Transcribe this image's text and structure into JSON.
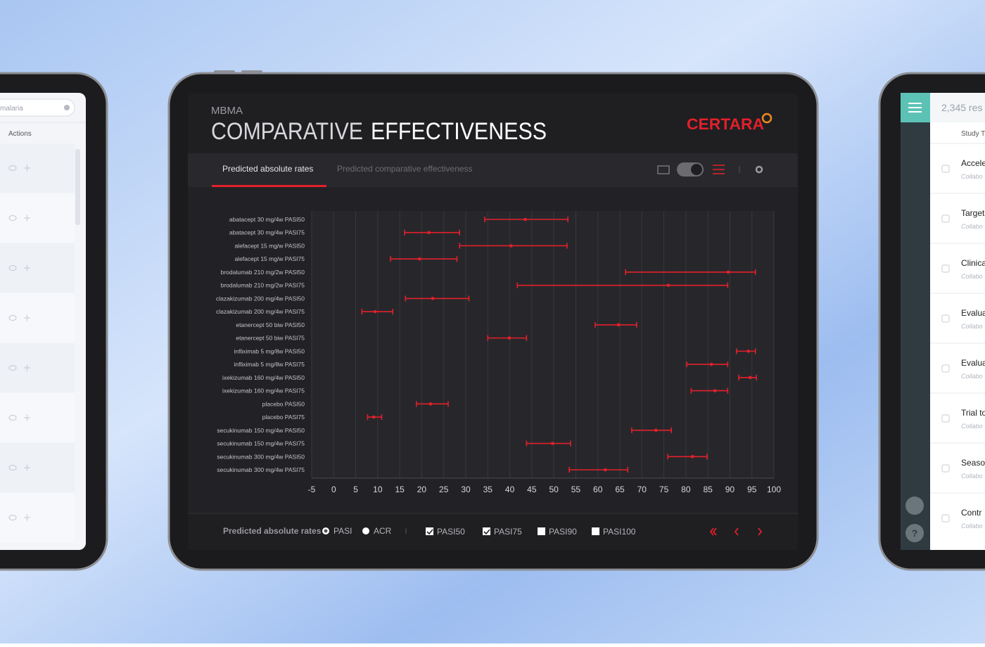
{
  "header": {
    "subtitle": "MBMA",
    "title_light": "COMPARATIVE",
    "title_bold": "EFFECTIVENESS",
    "logo": "CERTARA"
  },
  "tabs": [
    "Predicted absolute rates",
    "Predicted comparative effectiveness"
  ],
  "footer": {
    "label": "Predicted absolute rates",
    "radios": [
      "PASI",
      "ACR"
    ],
    "checkboxes": [
      "PASI50",
      "PASI75",
      "PASI90",
      "PASI100"
    ]
  },
  "left_panel": {
    "search": "malaria",
    "column": "Actions"
  },
  "right_panel": {
    "count": "2,345 res",
    "column": "Study T",
    "rows": [
      {
        "title": "Accele",
        "sub": "Collabo"
      },
      {
        "title": "Target",
        "sub": "Collabo"
      },
      {
        "title": "Clinica",
        "sub": "Collabo"
      },
      {
        "title": "Evalua",
        "sub": "Collabo"
      },
      {
        "title": "Evalua",
        "sub": "Collabo"
      },
      {
        "title": "Trial to",
        "sub": "Collabo"
      },
      {
        "title": "Seaso",
        "sub": "Collabo"
      },
      {
        "title": "Contr",
        "sub": "Collabo"
      }
    ]
  },
  "chart_data": {
    "type": "errorbar",
    "categories": [
      "abatacept 30 mg/4w PASI50",
      "abatacept 30 mg/4w PASI75",
      "alefacept 15 mg/w PASI50",
      "alefacept 15 mg/w PASI75",
      "brodalumab 210 mg/2w PASI50",
      "brodalumab 210 mg/2w PASI75",
      "clazakizumab 200 mg/4w PASI50",
      "clazakizumab 200 mg/4w PASI75",
      "etanercept 50 biw PASI50",
      "etanercept 50 biw PASI75",
      "infliximab 5 mg/8w PASI50",
      "infliximab 5 mg/8w PASI75",
      "ixekizumab 160 mg/4w PASI50",
      "ixekizumab 160 mg/4w PASI75",
      "placebo PASI50",
      "placebo PASI75",
      "secukinumab 150 mg/4w PASI50",
      "secukinumab 150 mg/4w PASI75",
      "secukinumab 300 mg/4w PASI50",
      "secukinumab 300 mg/4w PASI75"
    ],
    "series": [
      {
        "color": "#e3202b",
        "values": [
          43.5,
          21.6,
          40.3,
          19.5,
          89.6,
          76.0,
          22.5,
          9.4,
          64.7,
          39.9,
          94.2,
          85.8,
          94.6,
          86.6,
          22.0,
          9.1,
          73.2,
          49.7,
          81.5,
          61.7
        ],
        "low": [
          34.3,
          16.1,
          28.6,
          12.9,
          66.3,
          41.7,
          16.3,
          6.4,
          59.4,
          35.0,
          91.5,
          80.2,
          92.0,
          81.2,
          18.8,
          7.7,
          67.7,
          43.8,
          75.9,
          53.5
        ],
        "high": [
          53.2,
          28.6,
          53.0,
          28.0,
          95.8,
          89.5,
          30.7,
          13.4,
          68.8,
          43.8,
          95.8,
          89.5,
          96.0,
          89.5,
          26.0,
          10.9,
          76.7,
          53.8,
          84.8,
          66.8
        ]
      }
    ],
    "xlim": [
      -5,
      100
    ],
    "xticks": [
      -5,
      0,
      5,
      10,
      15,
      20,
      25,
      30,
      35,
      40,
      45,
      50,
      55,
      60,
      65,
      70,
      75,
      80,
      85,
      90,
      95,
      100
    ],
    "grid": true
  }
}
